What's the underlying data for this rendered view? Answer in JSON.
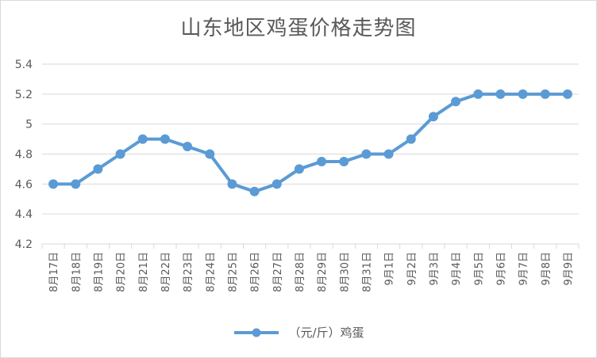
{
  "chart_data": {
    "type": "line",
    "title": "山东地区鸡蛋价格走势图",
    "categories": [
      "8月17日",
      "8月18日",
      "8月19日",
      "8月20日",
      "8月21日",
      "8月22日",
      "8月23日",
      "8月24日",
      "8月25日",
      "8月26日",
      "8月27日",
      "8月28日",
      "8月29日",
      "8月30日",
      "8月31日",
      "9月1日",
      "9月2日",
      "9月3日",
      "9月4日",
      "9月5日",
      "9月6日",
      "9月7日",
      "9月8日",
      "9月9日"
    ],
    "series": [
      {
        "name": "（元/斤）鸡蛋",
        "values": [
          4.6,
          4.6,
          4.7,
          4.8,
          4.9,
          4.9,
          4.85,
          4.8,
          4.6,
          4.55,
          4.6,
          4.7,
          4.75,
          4.75,
          4.8,
          4.8,
          4.9,
          5.05,
          5.15,
          5.2,
          5.2,
          5.2,
          5.2,
          5.2
        ]
      }
    ],
    "ylim": [
      4.2,
      5.4
    ],
    "yticks": [
      4.2,
      4.4,
      4.6,
      4.8,
      5,
      5.2,
      5.4
    ],
    "ytick_labels": [
      "4.2",
      "4.4",
      "4.6",
      "4.8",
      "5",
      "5.2",
      "5.4"
    ],
    "grid": true,
    "legend_position": "bottom",
    "colors": {
      "series": "#5b9bd5",
      "grid": "#d9d9d9",
      "text": "#595959"
    }
  }
}
